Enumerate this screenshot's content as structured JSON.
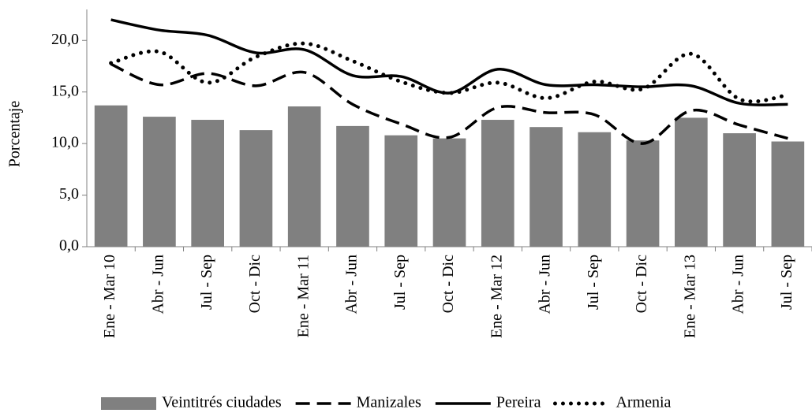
{
  "chart_data": {
    "type": "combo",
    "y_label": "Porcentaje",
    "categories": [
      "Ene - Mar 10",
      "Abr - Jun",
      "Jul - Sep",
      "Oct - Dic",
      "Ene - Mar 11",
      "Abr - Jun",
      "Jul - Sep",
      "Oct - Dic",
      "Ene - Mar 12",
      "Abr - Jun",
      "Jul - Sep",
      "Oct - Dic",
      "Ene - Mar 13",
      "Abr - Jun",
      "Jul - Sep"
    ],
    "series": [
      {
        "name": "Veintitrés ciudades",
        "style": "bar",
        "color": "#808080",
        "values": [
          13.7,
          12.6,
          12.3,
          11.3,
          13.6,
          11.7,
          10.8,
          10.5,
          12.3,
          11.6,
          11.1,
          10.3,
          12.5,
          11.0,
          10.2
        ]
      },
      {
        "name": "Manizales",
        "style": "dashed",
        "color": "#000000",
        "values": [
          17.7,
          15.7,
          16.8,
          15.6,
          16.9,
          13.8,
          11.9,
          10.6,
          13.5,
          13.0,
          12.8,
          10.0,
          13.2,
          11.8,
          10.5
        ]
      },
      {
        "name": "Pereira",
        "style": "solid",
        "color": "#000000",
        "values": [
          22.0,
          21.0,
          20.5,
          18.8,
          19.1,
          16.6,
          16.5,
          14.9,
          17.2,
          15.7,
          15.7,
          15.5,
          15.6,
          13.9,
          13.8
        ]
      },
      {
        "name": "Armenia",
        "style": "dotted",
        "color": "#000000",
        "values": [
          17.8,
          18.9,
          15.9,
          18.4,
          19.7,
          18.0,
          16.0,
          14.9,
          15.9,
          14.4,
          16.0,
          15.3,
          18.7,
          14.3,
          14.7
        ]
      }
    ],
    "ylim": [
      0,
      23
    ],
    "yticks": [
      {
        "value": 0,
        "label": "0,0"
      },
      {
        "value": 5,
        "label": "5,0"
      },
      {
        "value": 10,
        "label": "10,0"
      },
      {
        "value": 15,
        "label": "15,0"
      },
      {
        "value": 20,
        "label": "20,0"
      }
    ],
    "legend": "bottom"
  }
}
